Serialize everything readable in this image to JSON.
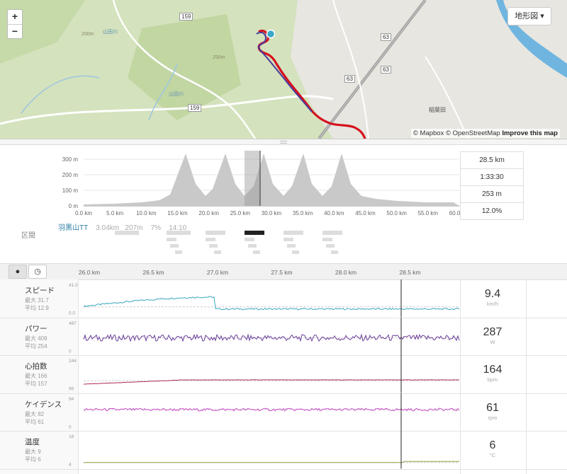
{
  "map": {
    "layer_button": "地形図 ▾",
    "zoom_in": "+",
    "zoom_out": "−",
    "attribution": {
      "mapbox": "© Mapbox",
      "osm": "© OpenStreetMap",
      "improve": "Improve this map"
    },
    "labels": {
      "road_159a": "159",
      "road_159b": "159",
      "road_63a": "63",
      "road_63b": "63",
      "road_63c": "63",
      "river_left": "山田川",
      "river_left2": "山田川",
      "hill_200": "200m",
      "hill_250": "250m",
      "place_right": "稲葉田"
    }
  },
  "summary_stats": [
    "28.5 km",
    "1:33:30",
    "253 m",
    "12.0%"
  ],
  "elevation_chart": {
    "y_ticks": [
      "300 m",
      "200 m",
      "100 m",
      "0 m"
    ],
    "x_ticks": [
      "0.0 km",
      "5.0 km",
      "10.0 km",
      "15.0 km",
      "20.0 km",
      "25.0 km",
      "30.0 km",
      "35.0 km",
      "40.0 km",
      "45.0 km",
      "50.0 km",
      "55.0 km",
      "60.0 km"
    ]
  },
  "segments": {
    "label": "区間",
    "name": "羽黒山TT",
    "distance": "3.04km",
    "elevation": "207m",
    "grade": "7%",
    "time": "14:10"
  },
  "toolbar": {
    "marker_icon": "●",
    "clock_icon": "◷"
  },
  "detail_x_ticks": [
    "26.0 km",
    "26.5 km",
    "27.0 km",
    "27.5 km",
    "28.0 km",
    "28.5 km"
  ],
  "streams": [
    {
      "title": "スピード",
      "max": "最大 31.7",
      "avg": "平均 12.9",
      "ymax": "41.0",
      "ymin": "0.0",
      "value": "9.4",
      "unit": "km/h",
      "color": "#3aa8c1"
    },
    {
      "title": "パワー",
      "max": "最大 409",
      "avg": "平均 254",
      "ymax": "487",
      "ymin": "0",
      "value": "287",
      "unit": "W",
      "color": "#6a3d9a"
    },
    {
      "title": "心拍数",
      "max": "最大 166",
      "avg": "平均 157",
      "ymax": "244",
      "ymin": "95",
      "value": "164",
      "unit": "bpm",
      "color": "#b02a5a"
    },
    {
      "title": "ケイデンス",
      "max": "最大 82",
      "avg": "平均 61",
      "ymax": "94",
      "ymin": "0",
      "value": "61",
      "unit": "rpm",
      "color": "#c84ac8"
    },
    {
      "title": "温度",
      "max": "最大 9",
      "avg": "平均 6",
      "ymax": "18",
      "ymin": "4",
      "value": "6",
      "unit": "°C",
      "color": "#8aa040"
    }
  ]
}
